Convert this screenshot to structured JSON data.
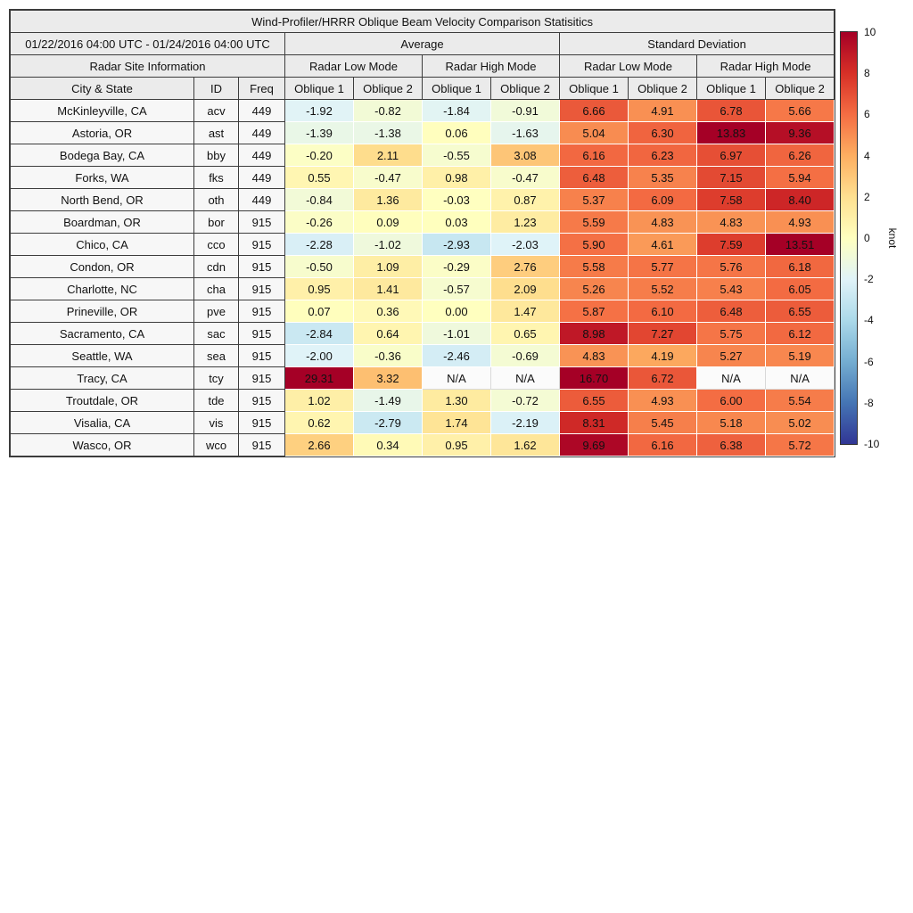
{
  "table": {
    "title": "Wind-Profiler/HRRR Oblique Beam Velocity Comparison Statisitics",
    "period": "01/22/2016 04:00 UTC - 01/24/2016 04:00 UTC",
    "group_headers": [
      "Average",
      "Standard Deviation"
    ],
    "site_info_header": "Radar Site Information",
    "mode_headers": [
      "Radar Low Mode",
      "Radar High Mode",
      "Radar Low Mode",
      "Radar High Mode"
    ],
    "column_headers": [
      "City & State",
      "ID",
      "Freq",
      "Oblique 1",
      "Oblique 2",
      "Oblique 1",
      "Oblique 2",
      "Oblique 1",
      "Oblique 2",
      "Oblique 1",
      "Oblique 2"
    ]
  },
  "colorbar": {
    "label": "knot",
    "min": -10,
    "max": 10,
    "ticks": [
      "10",
      "8",
      "6",
      "4",
      "2",
      "0",
      "-2",
      "-4",
      "-6",
      "-8",
      "-10"
    ],
    "gradient": [
      "#a50026",
      "#d73027",
      "#f46d43",
      "#fdae61",
      "#fee090",
      "#ffffbf",
      "#e0f3f8",
      "#abd9e9",
      "#74add1",
      "#4575b4",
      "#313695"
    ]
  },
  "chart_data": {
    "type": "heatmap",
    "title": "Wind-Profiler/HRRR Oblique Beam Velocity Comparison Statisitics",
    "units": "knot",
    "vmin": -10,
    "vmax": 10,
    "value_column_groups": [
      {
        "group": "Average",
        "mode": "Radar Low Mode",
        "label": "Oblique 1"
      },
      {
        "group": "Average",
        "mode": "Radar Low Mode",
        "label": "Oblique 2"
      },
      {
        "group": "Average",
        "mode": "Radar High Mode",
        "label": "Oblique 1"
      },
      {
        "group": "Average",
        "mode": "Radar High Mode",
        "label": "Oblique 2"
      },
      {
        "group": "Standard Deviation",
        "mode": "Radar Low Mode",
        "label": "Oblique 1"
      },
      {
        "group": "Standard Deviation",
        "mode": "Radar Low Mode",
        "label": "Oblique 2"
      },
      {
        "group": "Standard Deviation",
        "mode": "Radar High Mode",
        "label": "Oblique 1"
      },
      {
        "group": "Standard Deviation",
        "mode": "Radar High Mode",
        "label": "Oblique 2"
      }
    ],
    "rows": [
      {
        "city": "McKinleyville, CA",
        "id": "acv",
        "freq": "449",
        "values": [
          "-1.92",
          "-0.82",
          "-1.84",
          "-0.91",
          "6.66",
          "4.91",
          "6.78",
          "5.66"
        ]
      },
      {
        "city": "Astoria, OR",
        "id": "ast",
        "freq": "449",
        "values": [
          "-1.39",
          "-1.38",
          "0.06",
          "-1.63",
          "5.04",
          "6.30",
          "13.83",
          "9.36"
        ]
      },
      {
        "city": "Bodega Bay, CA",
        "id": "bby",
        "freq": "449",
        "values": [
          "-0.20",
          "2.11",
          "-0.55",
          "3.08",
          "6.16",
          "6.23",
          "6.97",
          "6.26"
        ]
      },
      {
        "city": "Forks, WA",
        "id": "fks",
        "freq": "449",
        "values": [
          "0.55",
          "-0.47",
          "0.98",
          "-0.47",
          "6.48",
          "5.35",
          "7.15",
          "5.94"
        ]
      },
      {
        "city": "North Bend, OR",
        "id": "oth",
        "freq": "449",
        "values": [
          "-0.84",
          "1.36",
          "-0.03",
          "0.87",
          "5.37",
          "6.09",
          "7.58",
          "8.40"
        ]
      },
      {
        "city": "Boardman, OR",
        "id": "bor",
        "freq": "915",
        "values": [
          "-0.26",
          "0.09",
          "0.03",
          "1.23",
          "5.59",
          "4.83",
          "4.83",
          "4.93"
        ]
      },
      {
        "city": "Chico, CA",
        "id": "cco",
        "freq": "915",
        "values": [
          "-2.28",
          "-1.02",
          "-2.93",
          "-2.03",
          "5.90",
          "4.61",
          "7.59",
          "13.51"
        ]
      },
      {
        "city": "Condon, OR",
        "id": "cdn",
        "freq": "915",
        "values": [
          "-0.50",
          "1.09",
          "-0.29",
          "2.76",
          "5.58",
          "5.77",
          "5.76",
          "6.18"
        ]
      },
      {
        "city": "Charlotte, NC",
        "id": "cha",
        "freq": "915",
        "values": [
          "0.95",
          "1.41",
          "-0.57",
          "2.09",
          "5.26",
          "5.52",
          "5.43",
          "6.05"
        ]
      },
      {
        "city": "Prineville, OR",
        "id": "pve",
        "freq": "915",
        "values": [
          "0.07",
          "0.36",
          "0.00",
          "1.47",
          "5.87",
          "6.10",
          "6.48",
          "6.55"
        ]
      },
      {
        "city": "Sacramento, CA",
        "id": "sac",
        "freq": "915",
        "values": [
          "-2.84",
          "0.64",
          "-1.01",
          "0.65",
          "8.98",
          "7.27",
          "5.75",
          "6.12"
        ]
      },
      {
        "city": "Seattle, WA",
        "id": "sea",
        "freq": "915",
        "values": [
          "-2.00",
          "-0.36",
          "-2.46",
          "-0.69",
          "4.83",
          "4.19",
          "5.27",
          "5.19"
        ]
      },
      {
        "city": "Tracy, CA",
        "id": "tcy",
        "freq": "915",
        "values": [
          "29.31",
          "3.32",
          "N/A",
          "N/A",
          "16.70",
          "6.72",
          "N/A",
          "N/A"
        ]
      },
      {
        "city": "Troutdale, OR",
        "id": "tde",
        "freq": "915",
        "values": [
          "1.02",
          "-1.49",
          "1.30",
          "-0.72",
          "6.55",
          "4.93",
          "6.00",
          "5.54"
        ]
      },
      {
        "city": "Visalia, CA",
        "id": "vis",
        "freq": "915",
        "values": [
          "0.62",
          "-2.79",
          "1.74",
          "-2.19",
          "8.31",
          "5.45",
          "5.18",
          "5.02"
        ]
      },
      {
        "city": "Wasco, OR",
        "id": "wco",
        "freq": "915",
        "values": [
          "2.66",
          "0.34",
          "0.95",
          "1.62",
          "9.69",
          "6.16",
          "6.38",
          "5.72"
        ]
      }
    ]
  }
}
